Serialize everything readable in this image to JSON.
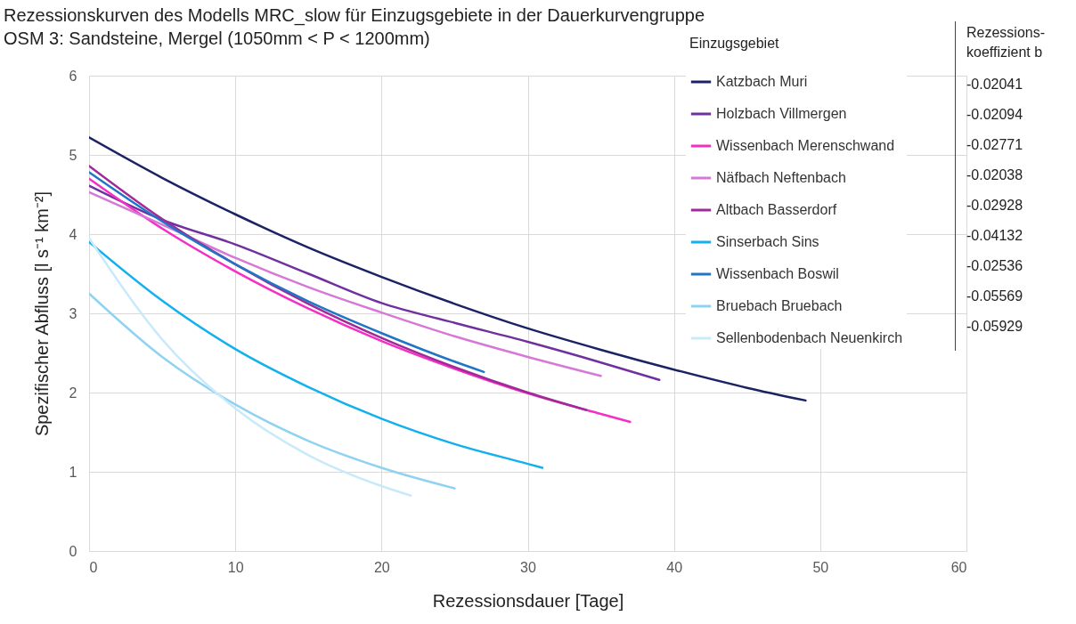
{
  "chart_data": {
    "type": "line",
    "title": "Rezessionskurven des Modells MRC_slow für Einzugsgebiete in der Dauerkurvengruppe OSM 3: Sandsteine, Mergel (1050mm < P < 1200mm)",
    "xlabel": "Rezessionsdauer [Tage]",
    "ylabel": "Spezifischer Abfluss [l s⁻¹ km⁻²]",
    "legend_title": "Einzugsgebiet",
    "xlim": [
      0,
      60
    ],
    "xticks": [
      0,
      10,
      20,
      30,
      40,
      50,
      60
    ],
    "ylim": [
      0,
      6
    ],
    "yticks": [
      0,
      1,
      2,
      3,
      4,
      5,
      6
    ],
    "grid": true,
    "legend": "top right",
    "marker": "none",
    "line_style": "solid",
    "annotations": [
      "Rezessions-koeffizient b",
      "-0.02041",
      "-0.02094",
      "-0.02771",
      "-0.02038",
      "-0.02928",
      "-0.04132",
      "-0.02536",
      "-0.05569",
      "-0.05929"
    ],
    "series": [
      {
        "name": "Katzbach Muri",
        "color": "#1b2365",
        "x": [
          0,
          5,
          10,
          15,
          20,
          25,
          30,
          35,
          40,
          45,
          49
        ],
        "values": [
          5.22,
          4.71,
          4.25,
          3.83,
          3.46,
          3.12,
          2.81,
          2.54,
          2.29,
          2.06,
          1.9
        ]
      },
      {
        "name": "Holzbach Villmergen",
        "color": "#7030a0",
        "x": [
          0,
          5,
          10,
          15,
          20,
          25,
          30,
          35,
          39
        ],
        "values": [
          4.61,
          4.18,
          3.87,
          3.5,
          3.13,
          2.88,
          2.64,
          2.38,
          2.16
        ]
      },
      {
        "name": "Wissenbach Merenschwand",
        "color": "#f52fc4",
        "x": [
          0,
          5,
          10,
          15,
          20,
          25,
          30,
          35,
          37
        ],
        "values": [
          4.7,
          4.07,
          3.53,
          3.06,
          2.65,
          2.3,
          1.99,
          1.73,
          1.63
        ]
      },
      {
        "name": "Näfbach Neftenbach",
        "color": "#d678d6",
        "x": [
          0,
          5,
          10,
          15,
          20,
          25,
          30,
          35
        ],
        "values": [
          4.53,
          4.12,
          3.7,
          3.33,
          3.01,
          2.71,
          2.45,
          2.21
        ]
      },
      {
        "name": "Altbach Basserdorf",
        "color": "#a02a98",
        "x": [
          0,
          5,
          10,
          15,
          20,
          25,
          30,
          34
        ],
        "values": [
          4.86,
          4.19,
          3.62,
          3.12,
          2.69,
          2.32,
          2.0,
          1.78
        ]
      },
      {
        "name": "Sinserbach Sins",
        "color": "#12b0ee",
        "x": [
          0,
          5,
          10,
          15,
          20,
          25,
          30,
          31
        ],
        "values": [
          3.9,
          3.16,
          2.55,
          2.07,
          1.67,
          1.35,
          1.1,
          1.05
        ]
      },
      {
        "name": "Wissenbach Boswil",
        "color": "#1f76c4",
        "x": [
          0,
          5,
          10,
          15,
          20,
          25,
          27
        ],
        "values": [
          4.78,
          4.16,
          3.62,
          3.15,
          2.75,
          2.39,
          2.26
        ]
      },
      {
        "name": "Bruebach Bruebach",
        "color": "#90d2f2",
        "x": [
          0,
          5,
          10,
          15,
          20,
          25
        ],
        "values": [
          3.25,
          2.45,
          1.85,
          1.39,
          1.05,
          0.79
        ]
      },
      {
        "name": "Sellenbodenbach Neuenkirch",
        "color": "#c8eafa",
        "x": [
          0,
          5,
          10,
          15,
          20,
          22
        ],
        "values": [
          3.95,
          2.67,
          1.8,
          1.21,
          0.82,
          0.7
        ]
      }
    ]
  }
}
